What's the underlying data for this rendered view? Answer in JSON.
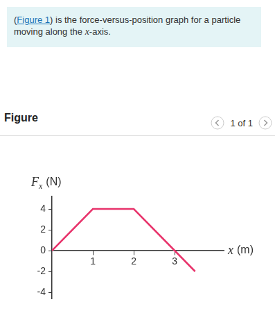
{
  "page": {
    "prompt": {
      "before": "(",
      "link": "Figure 1",
      "middle": ") is the force-versus-position graph for a particle moving along the ",
      "variable": "x",
      "after": "-axis."
    },
    "heading": "Figure",
    "pager": "1 of 1"
  },
  "chart_data": {
    "type": "line",
    "x": [
      0,
      1,
      2,
      3,
      3.5
    ],
    "values": [
      0,
      4,
      4,
      0,
      -2
    ],
    "color": "#e8336b",
    "xlim": [
      0,
      4.2
    ],
    "xticks": [
      1,
      2,
      3
    ],
    "ylim": [
      -4.6,
      5.2
    ],
    "yticks": [
      -4,
      -2,
      0,
      2,
      4
    ],
    "grid": false,
    "xlabel": {
      "symbol": "x",
      "unit": "(m)"
    },
    "ylabel": {
      "symbol": "F",
      "subscript": "x",
      "unit": "(N)"
    }
  }
}
